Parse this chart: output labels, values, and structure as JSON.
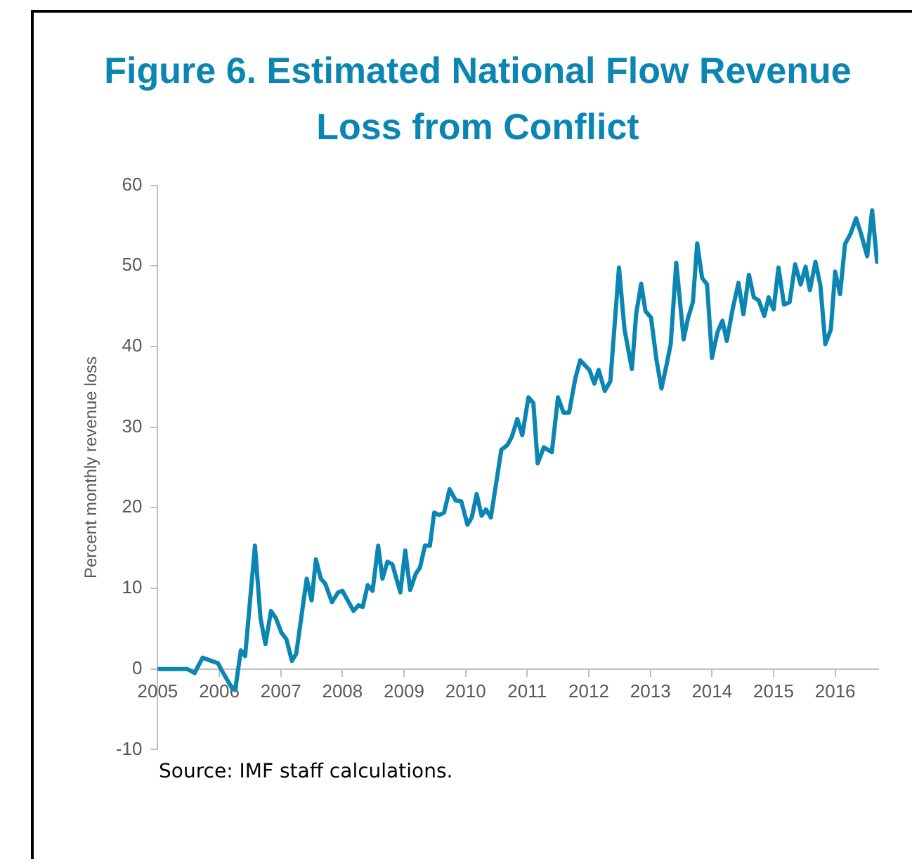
{
  "chart_data": {
    "type": "line",
    "title": "Figure 6. Estimated National Flow Revenue Loss from Conflict",
    "ylabel": "Percent monthly revenue loss",
    "annotations": [
      "Source: IMF staff calculations."
    ],
    "xlim": [
      2005,
      2016.7
    ],
    "xticks": [
      2005,
      2006,
      2007,
      2008,
      2009,
      2010,
      2011,
      2012,
      2013,
      2014,
      2015,
      2016
    ],
    "ylim": [
      -10,
      60
    ],
    "yticks": [
      -10,
      0,
      10,
      20,
      30,
      40,
      50,
      60
    ],
    "grid": false,
    "legend": false,
    "marker": "none",
    "line_style": "solid",
    "series": [
      {
        "color": "#0b86b2",
        "x": [
          2005,
          2005.48,
          2005.6,
          2005.73,
          2005.98,
          2006.05,
          2006.21,
          2006.26,
          2006.35,
          2006.42,
          2006.58,
          2006.67,
          2006.75,
          2006.84,
          2006.92,
          2007.01,
          2007.09,
          2007.18,
          2007.25,
          2007.42,
          2007.5,
          2007.57,
          2007.65,
          2007.72,
          2007.83,
          2007.93,
          2008.0,
          2008.18,
          2008.26,
          2008.33,
          2008.41,
          2008.49,
          2008.58,
          2008.65,
          2008.73,
          2008.81,
          2008.94,
          2009.02,
          2009.1,
          2009.19,
          2009.26,
          2009.34,
          2009.42,
          2009.49,
          2009.57,
          2009.65,
          2009.74,
          2009.84,
          2009.93,
          2010.03,
          2010.1,
          2010.18,
          2010.26,
          2010.33,
          2010.41,
          2010.58,
          2010.68,
          2010.75,
          2010.84,
          2010.92,
          2011.02,
          2011.1,
          2011.17,
          2011.27,
          2011.4,
          2011.5,
          2011.59,
          2011.68,
          2011.78,
          2011.86,
          2012.01,
          2012.09,
          2012.16,
          2012.26,
          2012.35,
          2012.49,
          2012.58,
          2012.7,
          2012.77,
          2012.85,
          2012.92,
          2013.01,
          2013.1,
          2013.18,
          2013.27,
          2013.33,
          2013.42,
          2013.54,
          2013.61,
          2013.69,
          2013.76,
          2013.84,
          2013.92,
          2014.0,
          2014.09,
          2014.17,
          2014.24,
          2014.34,
          2014.43,
          2014.51,
          2014.6,
          2014.68,
          2014.76,
          2014.85,
          2014.92,
          2015.0,
          2015.08,
          2015.17,
          2015.26,
          2015.35,
          2015.44,
          2015.52,
          2015.59,
          2015.68,
          2015.76,
          2015.84,
          2015.93,
          2016.0,
          2016.08,
          2016.16,
          2016.25,
          2016.34,
          2016.42,
          2016.52,
          2016.6,
          2016.68
        ],
        "values": [
          0,
          0,
          -0.5,
          1.4,
          0.7,
          -0.3,
          -2.4,
          -2.6,
          2.3,
          1.6,
          15.3,
          6.3,
          3.1,
          7.2,
          6.3,
          4.5,
          3.7,
          1.0,
          1.9,
          11.2,
          8.5,
          13.6,
          11.2,
          10.6,
          8.3,
          9.5,
          9.7,
          7.2,
          7.9,
          7.7,
          10.4,
          9.7,
          15.3,
          11.2,
          13.3,
          13.0,
          9.5,
          14.7,
          9.8,
          11.8,
          12.6,
          15.3,
          15.3,
          19.4,
          19.1,
          19.4,
          22.3,
          20.9,
          20.8,
          17.9,
          18.8,
          21.7,
          19.0,
          19.8,
          18.8,
          27.2,
          27.8,
          28.8,
          31.0,
          29.0,
          33.7,
          33.0,
          25.5,
          27.5,
          26.9,
          33.7,
          31.8,
          31.8,
          36.0,
          38.3,
          37.1,
          35.4,
          37.1,
          34.5,
          35.7,
          49.8,
          42.1,
          37.2,
          44.1,
          47.8,
          44.4,
          43.6,
          38.3,
          34.8,
          38.0,
          40.3,
          50.4,
          40.9,
          43.5,
          45.5,
          52.8,
          48.5,
          47.7,
          38.6,
          41.8,
          43.2,
          40.7,
          44.8,
          47.9,
          44.0,
          48.9,
          46.1,
          45.7,
          43.8,
          46.1,
          44.6,
          49.8,
          45.2,
          45.5,
          50.2,
          47.7,
          49.9,
          47.0,
          50.5,
          47.6,
          40.3,
          42.1,
          49.3,
          46.5,
          52.7,
          54.0,
          55.9,
          54.0,
          51.2,
          56.9,
          50.5
        ]
      }
    ]
  }
}
